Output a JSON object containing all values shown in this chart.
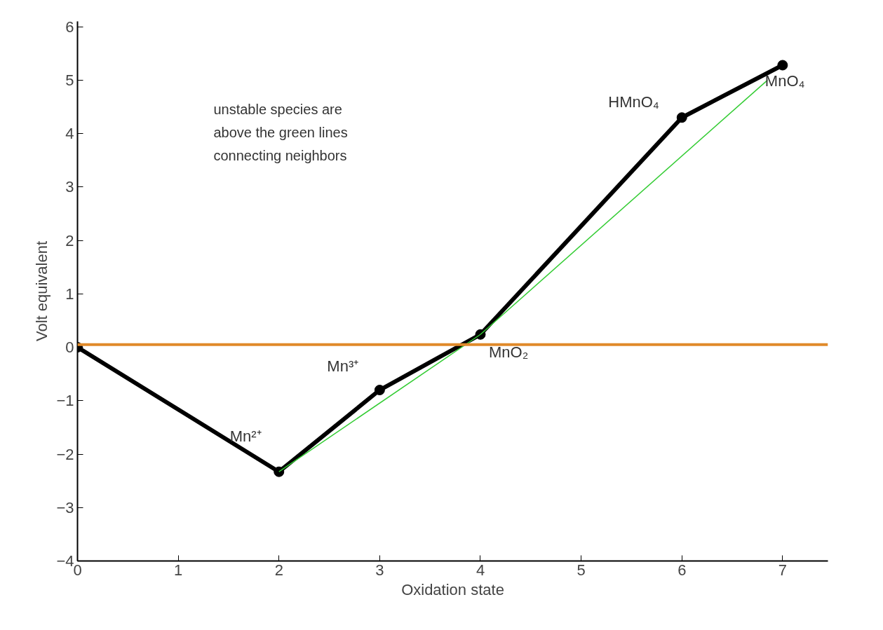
{
  "chart_data": {
    "type": "line",
    "xlabel": "Oxidation state",
    "ylabel": "Volt equivalent",
    "xlim": [
      0,
      7.45
    ],
    "ylim": [
      -4,
      6.1
    ],
    "xticks": [
      0,
      1,
      2,
      3,
      4,
      5,
      6,
      7
    ],
    "yticks": [
      -4,
      -3,
      -2,
      -1,
      0,
      1,
      2,
      3,
      4,
      5,
      6
    ],
    "grid": false,
    "marker": "circle",
    "line_style": "solid",
    "series": [
      {
        "color": "#000000",
        "x": [
          0,
          2,
          3,
          4,
          6,
          7
        ],
        "values": [
          0,
          -2.33,
          -0.8,
          0.24,
          4.3,
          5.28
        ]
      },
      {
        "color": "#33cc33",
        "x": [
          2,
          4
        ],
        "values": [
          -2.33,
          0.24
        ],
        "marker": "none"
      },
      {
        "color": "#33cc33",
        "x": [
          4,
          6.85
        ],
        "values": [
          0.24,
          5.0
        ],
        "marker": "none"
      }
    ],
    "ref_lines": [
      {
        "axis": "y",
        "value": 0.05,
        "color": "#e08a2a"
      }
    ],
    "annotations": [
      {
        "text": "Mn²⁺",
        "x": 2,
        "y": -2.33
      },
      {
        "text": "Mn³⁺",
        "x": 3,
        "y": -0.8
      },
      {
        "text": "MnO₂",
        "x": 4,
        "y": 0.24
      },
      {
        "text": "HMnO₄",
        "x": 6,
        "y": 4.3
      },
      {
        "text": "MnO₄",
        "x": 7,
        "y": 5.28
      },
      "unstable species are above the green lines connecting neighbors"
    ]
  }
}
